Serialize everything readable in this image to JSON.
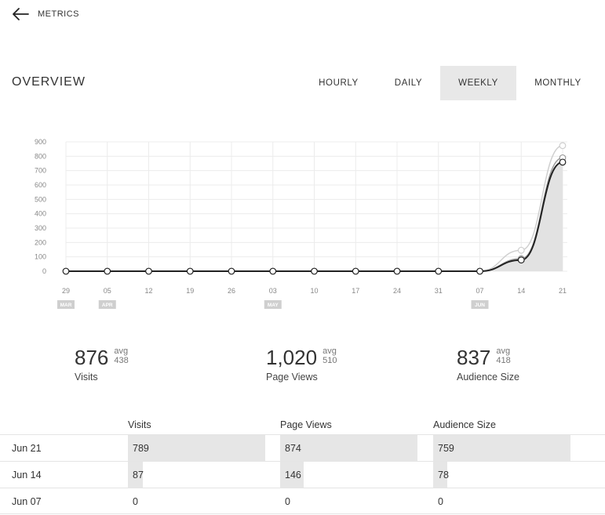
{
  "nav": {
    "back_label": "METRICS",
    "back_icon": "arrow-left-icon"
  },
  "overview": {
    "title": "OVERVIEW"
  },
  "range_tabs": [
    {
      "label": "HOURLY",
      "active": false
    },
    {
      "label": "DAILY",
      "active": false
    },
    {
      "label": "WEEKLY",
      "active": true
    },
    {
      "label": "MONTHLY",
      "active": false
    }
  ],
  "chart_data": {
    "type": "line",
    "categories": [
      "29",
      "05",
      "12",
      "19",
      "26",
      "03",
      "10",
      "17",
      "24",
      "31",
      "07",
      "14",
      "21"
    ],
    "month_markers": [
      {
        "index": 0,
        "label": "MAR"
      },
      {
        "index": 1,
        "label": "APR"
      },
      {
        "index": 5,
        "label": "MAY"
      },
      {
        "index": 10,
        "label": "JUN"
      }
    ],
    "y_ticks": [
      "0",
      "100",
      "200",
      "300",
      "400",
      "500",
      "600",
      "700",
      "800",
      "900"
    ],
    "ylim": [
      0,
      900
    ],
    "grid": true,
    "series": [
      {
        "values": [
          0,
          0,
          0,
          0,
          0,
          0,
          0,
          0,
          0,
          0,
          0,
          146,
          874
        ],
        "color": "#cfcfcf"
      },
      {
        "values": [
          0,
          0,
          0,
          0,
          0,
          0,
          0,
          0,
          0,
          0,
          0,
          87,
          789
        ],
        "color": "#9a9a9a"
      },
      {
        "values": [
          0,
          0,
          0,
          0,
          0,
          0,
          0,
          0,
          0,
          0,
          0,
          78,
          759
        ],
        "color": "#222222"
      }
    ]
  },
  "stats": [
    {
      "value": "876",
      "avg_label": "avg",
      "avg_value": "438",
      "label": "Visits"
    },
    {
      "value": "1,020",
      "avg_label": "avg",
      "avg_value": "510",
      "label": "Page Views"
    },
    {
      "value": "837",
      "avg_label": "avg",
      "avg_value": "418",
      "label": "Audience Size"
    }
  ],
  "table": {
    "columns": [
      "Visits",
      "Page Views",
      "Audience Size"
    ],
    "rows": [
      {
        "date": "Jun 21",
        "values": [
          "789",
          "874",
          "759"
        ],
        "fractions": [
          1.0,
          1.0,
          1.0
        ]
      },
      {
        "date": "Jun 14",
        "values": [
          "87",
          "146",
          "78"
        ],
        "fractions": [
          0.11,
          0.17,
          0.1
        ]
      },
      {
        "date": "Jun 07",
        "values": [
          "0",
          "0",
          "0"
        ],
        "fractions": [
          0,
          0,
          0
        ]
      }
    ]
  }
}
